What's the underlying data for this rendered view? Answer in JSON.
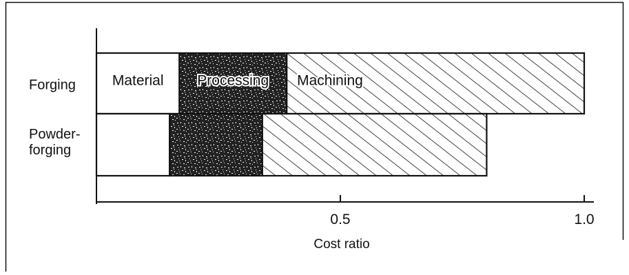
{
  "chart_data": {
    "type": "bar",
    "orientation": "horizontal",
    "stacked": true,
    "categories": [
      [
        "Forging"
      ],
      [
        "Powder-",
        "forging"
      ]
    ],
    "series": [
      {
        "name": "Material",
        "values": [
          0.17,
          0.15
        ],
        "fill": "none"
      },
      {
        "name": "Processing",
        "values": [
          0.22,
          0.19
        ],
        "fill": "stipple"
      },
      {
        "name": "Machining",
        "values": [
          0.61,
          0.46
        ],
        "fill": "hatch"
      }
    ],
    "xlabel": "Cost ratio",
    "xlim": [
      0,
      1.0
    ],
    "xticks": [
      0.5,
      1.0
    ],
    "xtick_labels": [
      "0.5",
      "1.0"
    ],
    "grid": false,
    "legend": "labels inside top bar",
    "colors": {
      "ink": "#111111",
      "background": "#ffffff"
    }
  }
}
